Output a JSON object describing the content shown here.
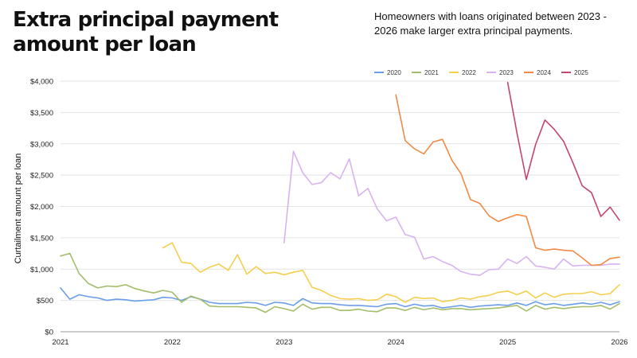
{
  "header": {
    "title": "Extra principal payment amount per loan",
    "subtitle": "Homeowners with loans originated between 2023 - 2026 make larger extra principal payments."
  },
  "chart_data": {
    "type": "line",
    "title": "Extra principal payment amount per loan",
    "subtitle": "Homeowners with loans originated between 2023 - 2026 make larger extra principal payments.",
    "xlabel": "",
    "ylabel": "Curtailment amount per loan",
    "x_ticks": [
      "2021",
      "2022",
      "2023",
      "2024",
      "2025",
      "2026"
    ],
    "y_ticks": [
      "$0",
      "$500",
      "$1,000",
      "$1,500",
      "$2,000",
      "$2,500",
      "$3,000",
      "$3,500",
      "$4,000"
    ],
    "ylim": [
      0,
      4000
    ],
    "xlim": [
      2021.0,
      2026.0
    ],
    "grid": "horizontal",
    "legend_position": "top-right",
    "series": [
      {
        "name": "2020",
        "color": "#6b9ee8",
        "x": [
          2021.0,
          2021.083,
          2021.167,
          2021.25,
          2021.333,
          2021.417,
          2021.5,
          2021.583,
          2021.667,
          2021.75,
          2021.833,
          2021.917,
          2022.0,
          2022.083,
          2022.167,
          2022.25,
          2022.333,
          2022.417,
          2022.5,
          2022.583,
          2022.667,
          2022.75,
          2022.833,
          2022.917,
          2023.0,
          2023.083,
          2023.167,
          2023.25,
          2023.333,
          2023.417,
          2023.5,
          2023.583,
          2023.667,
          2023.75,
          2023.833,
          2023.917,
          2024.0,
          2024.083,
          2024.167,
          2024.25,
          2024.333,
          2024.417,
          2024.5,
          2024.583,
          2024.667,
          2024.75,
          2024.833,
          2024.917,
          2025.0,
          2025.083,
          2025.167,
          2025.25,
          2025.333,
          2025.417,
          2025.5,
          2025.583,
          2025.667,
          2025.75,
          2025.833,
          2025.917,
          2026.0
        ],
        "y": [
          700,
          520,
          590,
          560,
          540,
          500,
          520,
          510,
          490,
          500,
          510,
          550,
          540,
          500,
          560,
          520,
          470,
          450,
          450,
          450,
          470,
          460,
          420,
          470,
          460,
          420,
          530,
          460,
          450,
          450,
          430,
          420,
          420,
          410,
          400,
          440,
          450,
          400,
          440,
          410,
          420,
          380,
          400,
          420,
          390,
          410,
          420,
          430,
          420,
          460,
          420,
          480,
          430,
          450,
          420,
          440,
          460,
          440,
          470,
          430,
          480
        ]
      },
      {
        "name": "2021",
        "color": "#a4bd6a",
        "x": [
          2021.0,
          2021.083,
          2021.167,
          2021.25,
          2021.333,
          2021.417,
          2021.5,
          2021.583,
          2021.667,
          2021.75,
          2021.833,
          2021.917,
          2022.0,
          2022.083,
          2022.167,
          2022.25,
          2022.333,
          2022.417,
          2022.5,
          2022.583,
          2022.667,
          2022.75,
          2022.833,
          2022.917,
          2023.0,
          2023.083,
          2023.167,
          2023.25,
          2023.333,
          2023.417,
          2023.5,
          2023.583,
          2023.667,
          2023.75,
          2023.833,
          2023.917,
          2024.0,
          2024.083,
          2024.167,
          2024.25,
          2024.333,
          2024.417,
          2024.5,
          2024.583,
          2024.667,
          2024.75,
          2024.833,
          2024.917,
          2025.0,
          2025.083,
          2025.167,
          2025.25,
          2025.333,
          2025.417,
          2025.5,
          2025.583,
          2025.667,
          2025.75,
          2025.833,
          2025.917,
          2026.0
        ],
        "y": [
          1210,
          1250,
          930,
          770,
          700,
          730,
          720,
          750,
          690,
          650,
          620,
          660,
          630,
          470,
          570,
          520,
          410,
          400,
          400,
          400,
          390,
          380,
          310,
          400,
          370,
          330,
          440,
          360,
          390,
          390,
          340,
          340,
          360,
          330,
          320,
          380,
          380,
          340,
          390,
          350,
          380,
          350,
          370,
          370,
          350,
          360,
          370,
          380,
          400,
          420,
          330,
          420,
          360,
          390,
          370,
          390,
          400,
          400,
          420,
          360,
          450
        ]
      },
      {
        "name": "2022",
        "color": "#f5cf4e",
        "x": [
          2021.917,
          2022.0,
          2022.083,
          2022.167,
          2022.25,
          2022.333,
          2022.417,
          2022.5,
          2022.583,
          2022.667,
          2022.75,
          2022.833,
          2022.917,
          2023.0,
          2023.083,
          2023.167,
          2023.25,
          2023.333,
          2023.417,
          2023.5,
          2023.583,
          2023.667,
          2023.75,
          2023.833,
          2023.917,
          2024.0,
          2024.083,
          2024.167,
          2024.25,
          2024.333,
          2024.417,
          2024.5,
          2024.583,
          2024.667,
          2024.75,
          2024.833,
          2024.917,
          2025.0,
          2025.083,
          2025.167,
          2025.25,
          2025.333,
          2025.417,
          2025.5,
          2025.583,
          2025.667,
          2025.75,
          2025.833,
          2025.917,
          2026.0
        ],
        "y": [
          1340,
          1420,
          1110,
          1090,
          950,
          1030,
          1080,
          980,
          1230,
          920,
          1040,
          930,
          950,
          910,
          950,
          980,
          710,
          660,
          580,
          530,
          520,
          530,
          500,
          510,
          600,
          560,
          470,
          550,
          530,
          540,
          480,
          500,
          540,
          520,
          560,
          580,
          630,
          650,
          590,
          650,
          540,
          620,
          550,
          600,
          610,
          610,
          640,
          590,
          610,
          750
        ]
      },
      {
        "name": "2023",
        "color": "#d8b3f0",
        "x": [
          2023.0,
          2023.083,
          2023.167,
          2023.25,
          2023.333,
          2023.417,
          2023.5,
          2023.583,
          2023.667,
          2023.75,
          2023.833,
          2023.917,
          2024.0,
          2024.083,
          2024.167,
          2024.25,
          2024.333,
          2024.417,
          2024.5,
          2024.583,
          2024.667,
          2024.75,
          2024.833,
          2024.917,
          2025.0,
          2025.083,
          2025.167,
          2025.25,
          2025.333,
          2025.417,
          2025.5,
          2025.583,
          2025.667,
          2025.75,
          2025.833,
          2025.917,
          2026.0
        ],
        "y": [
          1420,
          2880,
          2540,
          2350,
          2380,
          2540,
          2440,
          2760,
          2170,
          2290,
          1960,
          1770,
          1830,
          1550,
          1510,
          1160,
          1200,
          1120,
          1060,
          960,
          920,
          900,
          990,
          1000,
          1160,
          1090,
          1200,
          1050,
          1030,
          1000,
          1160,
          1050,
          1060,
          1060,
          1060,
          1080,
          1080
        ]
      },
      {
        "name": "2024",
        "color": "#f08a48",
        "x": [
          2024.0,
          2024.083,
          2024.167,
          2024.25,
          2024.333,
          2024.417,
          2024.5,
          2024.583,
          2024.667,
          2024.75,
          2024.833,
          2024.917,
          2025.0,
          2025.083,
          2025.167,
          2025.25,
          2025.333,
          2025.417,
          2025.5,
          2025.583,
          2025.667,
          2025.75,
          2025.833,
          2025.917,
          2026.0
        ],
        "y": [
          3780,
          3050,
          2920,
          2840,
          3030,
          3070,
          2740,
          2520,
          2110,
          2050,
          1850,
          1760,
          1820,
          1870,
          1840,
          1340,
          1300,
          1320,
          1300,
          1290,
          1180,
          1060,
          1070,
          1170,
          1190
        ]
      },
      {
        "name": "2025",
        "color": "#c4456e",
        "x": [
          2025.0,
          2025.083,
          2025.167,
          2025.25,
          2025.333,
          2025.417,
          2025.5,
          2025.583,
          2025.667,
          2025.75,
          2025.833,
          2025.917,
          2026.0
        ],
        "y": [
          3980,
          3170,
          2430,
          2990,
          3380,
          3230,
          3040,
          2700,
          2330,
          2220,
          1840,
          1990,
          1780
        ]
      }
    ]
  }
}
